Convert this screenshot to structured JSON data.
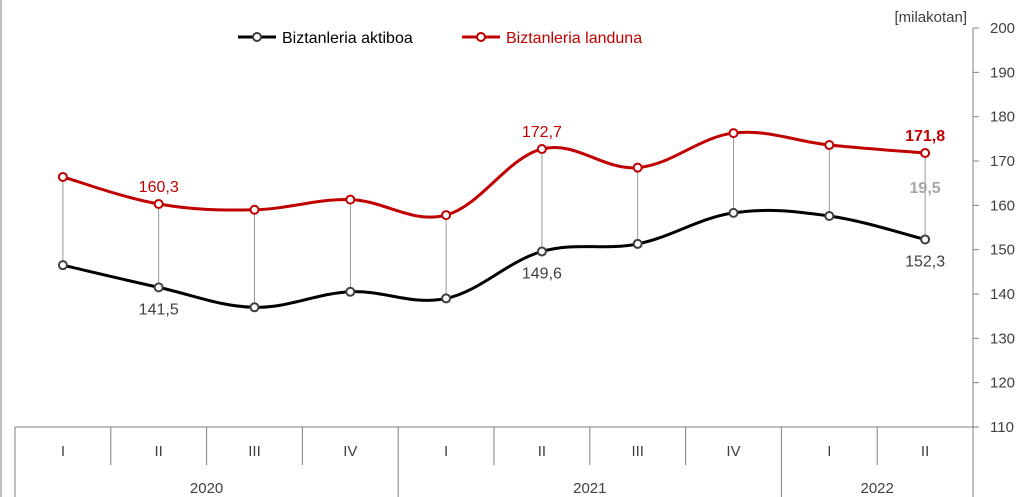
{
  "chart_data": {
    "type": "line",
    "unit_label": "[milakotan]",
    "ylim": [
      110,
      200
    ],
    "yticks": [
      "110",
      "120",
      "130",
      "140",
      "150",
      "160",
      "170",
      "180",
      "190",
      "200"
    ],
    "categories": [
      "I",
      "II",
      "III",
      "IV",
      "I",
      "II",
      "III",
      "IV",
      "I",
      "II"
    ],
    "years": [
      {
        "label": "2020",
        "start": 0,
        "end": 3
      },
      {
        "label": "2021",
        "start": 4,
        "end": 7
      },
      {
        "label": "2022",
        "start": 8,
        "end": 9
      }
    ],
    "legend_position": "top-left",
    "series": [
      {
        "name": "Biztanleria aktiboa",
        "color": "#000000",
        "values": [
          146.5,
          141.5,
          137.0,
          140.5,
          139.0,
          149.6,
          151.3,
          158.3,
          157.6,
          152.3
        ]
      },
      {
        "name": "Biztanleria landuna",
        "color": "#c00000",
        "values": [
          166.4,
          160.3,
          159.0,
          161.3,
          157.8,
          172.7,
          168.5,
          176.3,
          173.6,
          171.8
        ]
      }
    ],
    "data_labels": [
      {
        "series": 1,
        "index": 1,
        "text": "160,3",
        "bold": false
      },
      {
        "series": 1,
        "index": 5,
        "text": "172,7",
        "bold": false
      },
      {
        "series": 1,
        "index": 9,
        "text": "171,8",
        "bold": true
      },
      {
        "series": 0,
        "index": 1,
        "text": "141,5",
        "bold": false
      },
      {
        "series": 0,
        "index": 5,
        "text": "149,6",
        "bold": false
      },
      {
        "series": 0,
        "index": 9,
        "text": "152,3",
        "bold": false
      }
    ],
    "gap_label": {
      "index": 9,
      "text": "19,5",
      "color": "#a6a6a6"
    }
  }
}
